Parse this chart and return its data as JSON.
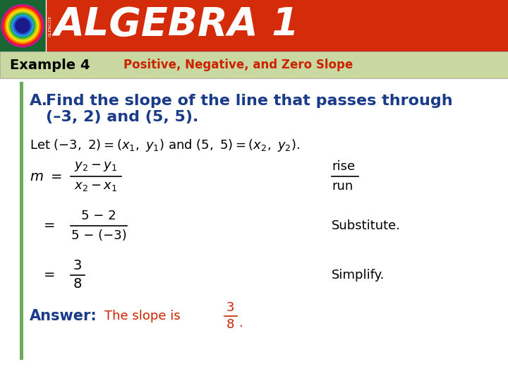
{
  "header_bg_color": "#d42b0a",
  "header_text": "ALGEBRA 1",
  "header_text_color": "#ffffff",
  "example_bar_color": "#c8d8a0",
  "example_label": "Example 4",
  "example_title": "Positive, Negative, and Zero Slope",
  "example_title_color": "#cc2200",
  "body_bg_color": "#ffffff",
  "left_bar_color": "#6aaa5a",
  "body_text_color": "#000000",
  "blue_color": "#1a3a8a",
  "red_color": "#cc2200",
  "substitute_label": "Substitute.",
  "simplify_label": "Simplify.",
  "answer_label": "Answer:",
  "answer_text": "The slope is"
}
